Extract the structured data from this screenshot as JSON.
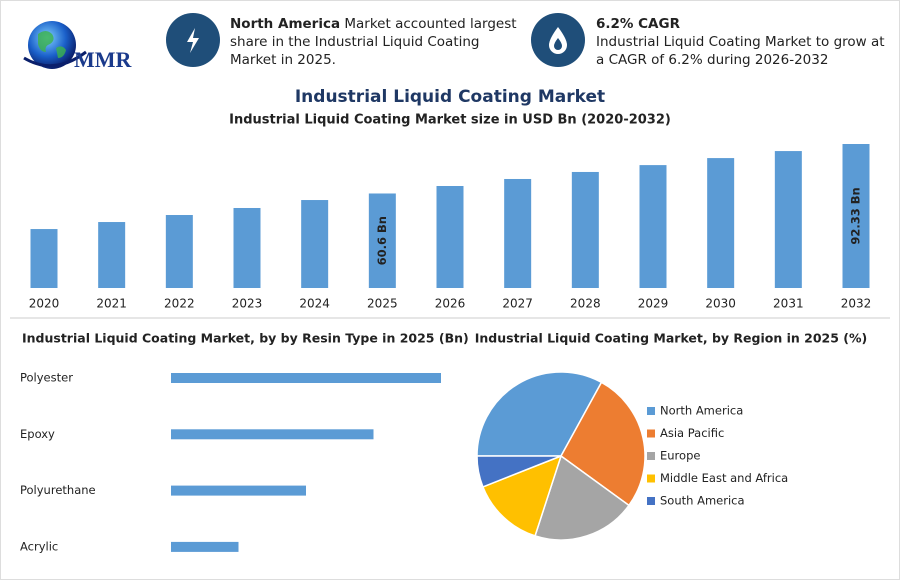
{
  "header": {
    "logo_text": "MMR",
    "highlights": [
      {
        "title": "North America",
        "text": "Market accounted largest share in the Industrial Liquid Coating Market in 2025."
      },
      {
        "title": "6.2% CAGR",
        "text": "Industrial Liquid Coating Market to grow at a CAGR of 6.2% during 2026-2032"
      }
    ],
    "title": "Industrial Liquid Coating Market"
  },
  "chart_data": [
    {
      "type": "bar",
      "title": "Industrial Liquid Coating Market size in USD Bn (2020-2032)",
      "categories": [
        "2020",
        "2021",
        "2022",
        "2023",
        "2024",
        "2025",
        "2026",
        "2027",
        "2028",
        "2029",
        "2030",
        "2031",
        "2032"
      ],
      "values": [
        37.8,
        42.3,
        46.8,
        51.3,
        56.4,
        60.6,
        65.4,
        69.9,
        74.4,
        78.8,
        83.3,
        87.8,
        92.33
      ],
      "value_labels": [
        null,
        null,
        null,
        null,
        null,
        "60.6 Bn",
        null,
        null,
        null,
        null,
        null,
        null,
        "92.33 Bn"
      ],
      "color": "#5b9bd5"
    },
    {
      "type": "hbar",
      "title": "Industrial Liquid Coating Market, by by Resin Type in 2025 (Bn)",
      "categories": [
        "Polyester",
        "Epoxy",
        "Polyurethane",
        "Acrylic"
      ],
      "values": [
        24,
        18,
        12,
        6
      ],
      "color": "#5b9bd5"
    },
    {
      "type": "pie",
      "title": "Industrial Liquid Coating Market, by Region in 2025 (%)",
      "categories": [
        "North America",
        "Asia Pacific",
        "Europe",
        "Middle East and Africa",
        "South America"
      ],
      "values": [
        33,
        27,
        20,
        14,
        6
      ],
      "colors": [
        "#5b9bd5",
        "#ed7d31",
        "#a5a5a5",
        "#ffc000",
        "#4472c4"
      ]
    }
  ]
}
